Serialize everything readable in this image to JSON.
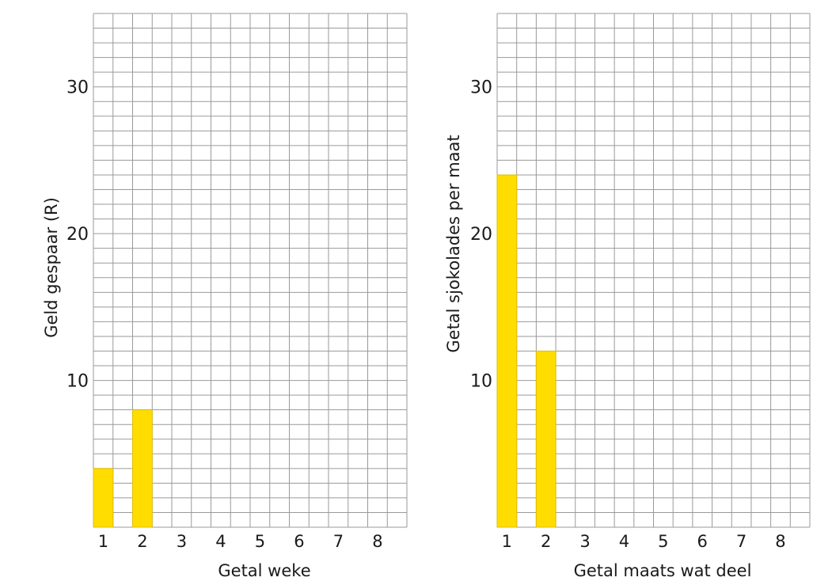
{
  "colors": {
    "bar": "#FFDD00",
    "bar_stroke": "#E0BF00",
    "grid": "#9a9a9a"
  },
  "chart_data": [
    {
      "type": "bar",
      "categories": [
        "1",
        "2",
        "3",
        "4",
        "5",
        "6",
        "7",
        "8"
      ],
      "values": [
        4,
        8,
        null,
        null,
        null,
        null,
        null,
        null
      ],
      "xlabel": "Getal weke",
      "ylabel": "Geld gespaar (R)",
      "ylim": [
        0,
        35
      ],
      "yticks": [
        10,
        20,
        30
      ],
      "grid": true
    },
    {
      "type": "bar",
      "categories": [
        "1",
        "2",
        "3",
        "4",
        "5",
        "6",
        "7",
        "8"
      ],
      "values": [
        24,
        12,
        null,
        null,
        null,
        null,
        null,
        null
      ],
      "xlabel": "Getal maats wat deel",
      "ylabel": "Getal sjokolades per maat",
      "ylim": [
        0,
        35
      ],
      "yticks": [
        10,
        20,
        30
      ],
      "grid": true
    }
  ]
}
